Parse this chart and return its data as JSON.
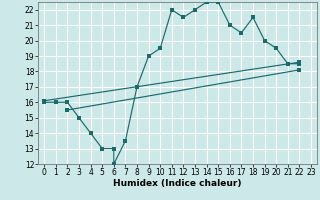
{
  "bg_color": "#cde8e8",
  "grid_color": "#b0d4d4",
  "line_color": "#1a6b6b",
  "xlabel": "Humidex (Indice chaleur)",
  "xlim": [
    -0.5,
    23.5
  ],
  "ylim": [
    12,
    22.5
  ],
  "xticks": [
    0,
    1,
    2,
    3,
    4,
    5,
    6,
    7,
    8,
    9,
    10,
    11,
    12,
    13,
    14,
    15,
    16,
    17,
    18,
    19,
    20,
    21,
    22,
    23
  ],
  "yticks": [
    12,
    13,
    14,
    15,
    16,
    17,
    18,
    19,
    20,
    21,
    22
  ],
  "line1_x": [
    0,
    1,
    2,
    3,
    4,
    5,
    6,
    6,
    7,
    8,
    9,
    10,
    11,
    12,
    13,
    14,
    15,
    16,
    17,
    18,
    19,
    20,
    21,
    22
  ],
  "line1_y": [
    16,
    16,
    16,
    15,
    14,
    13,
    13,
    12,
    13.5,
    17,
    19,
    19.5,
    22,
    21.5,
    22,
    22.5,
    22.5,
    21,
    20.5,
    21.5,
    20,
    19.5,
    18.5,
    18.5
  ],
  "line2_x": [
    0,
    22
  ],
  "line2_y": [
    16.1,
    18.6
  ],
  "line3_x": [
    2,
    22
  ],
  "line3_y": [
    15.5,
    18.1
  ],
  "xlabel_fontsize": 6.5,
  "tick_fontsize": 5.5
}
